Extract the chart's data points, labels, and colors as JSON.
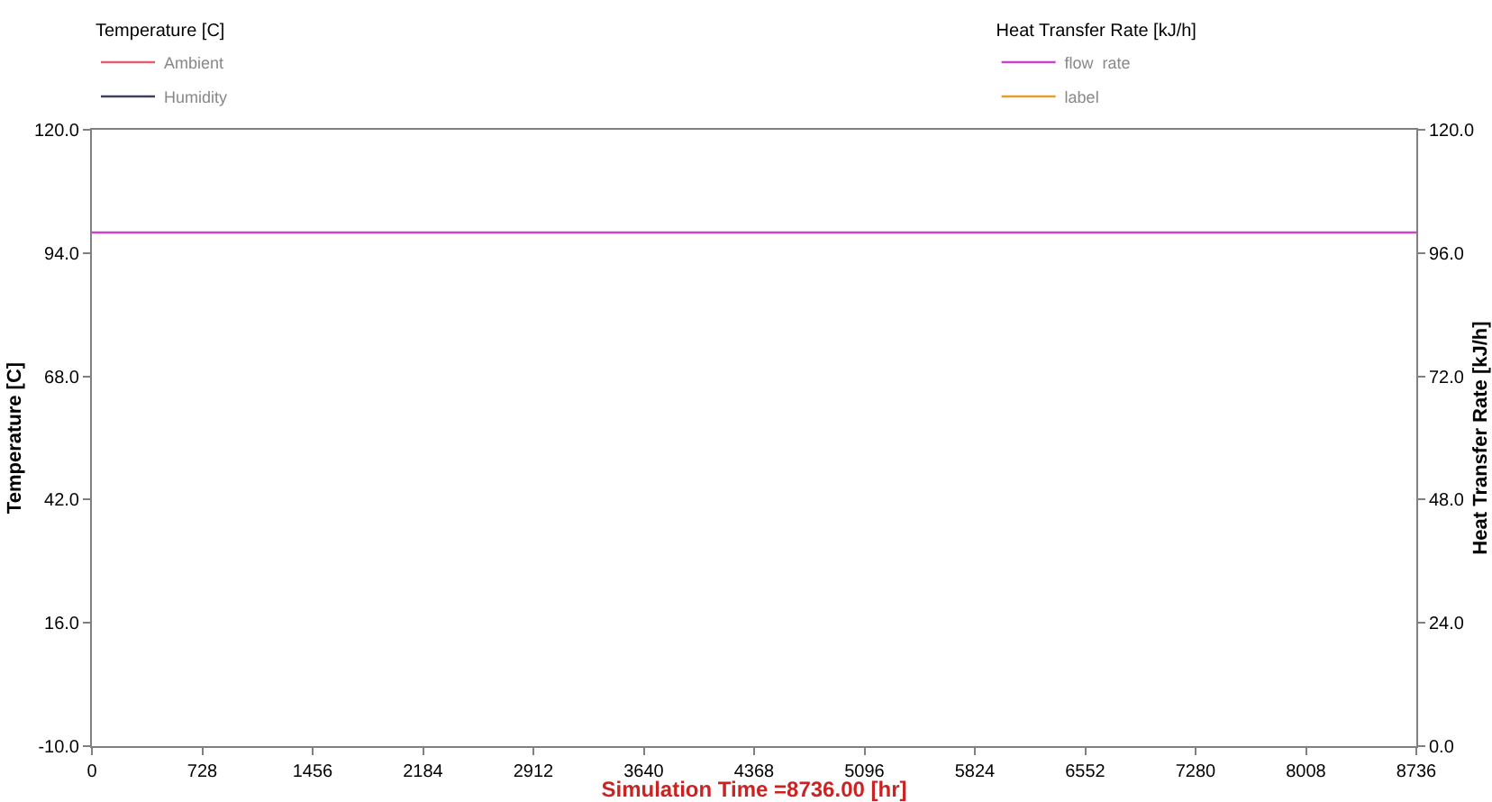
{
  "chart_data": {
    "type": "line",
    "xlabel": "Simulation Time =8736.00 [hr]",
    "ylabel": "Temperature [C]",
    "y2label": "Heat Transfer Rate [kJ/h]",
    "legend_title": [
      "Temperature [C]",
      "Heat Transfer Rate [kJ/h]"
    ],
    "x": [
      0,
      8736
    ],
    "series": [
      {
        "name": "Ambient",
        "color": "#e06070",
        "values": [
          null,
          null
        ]
      },
      {
        "name": "Humidity",
        "color": "#404060",
        "values": [
          null,
          null
        ]
      },
      {
        "name": "flow  rate",
        "color": "#cc44cc",
        "values": [
          100,
          100
        ],
        "axis": "y2"
      },
      {
        "name": "label",
        "color": "#e0a030",
        "values": [
          null,
          null
        ],
        "axis": "y2"
      }
    ],
    "xlim": [
      0,
      8736
    ],
    "xticks": [
      0,
      728,
      1456,
      2184,
      2912,
      3640,
      4368,
      5096,
      5824,
      6552,
      7280,
      8008,
      8736
    ],
    "ylim": [
      -10,
      120
    ],
    "yticks": [
      {
        "value": -10,
        "label": "-10.0"
      },
      {
        "value": 16,
        "label": "16.0"
      },
      {
        "value": 42,
        "label": "42.0"
      },
      {
        "value": 68,
        "label": "68.0"
      },
      {
        "value": 94,
        "label": "94.0"
      },
      {
        "value": 120,
        "label": "120.0"
      }
    ],
    "y2lim": [
      0,
      120
    ],
    "y2ticks": [
      {
        "value": 0,
        "label": "0.0"
      },
      {
        "value": 24,
        "label": "24.0"
      },
      {
        "value": 48,
        "label": "48.0"
      },
      {
        "value": 72,
        "label": "72.0"
      },
      {
        "value": 96,
        "label": "96.0"
      },
      {
        "value": 120,
        "label": "120.0"
      }
    ],
    "legend": "top",
    "marker": "none",
    "line_style": "solid"
  }
}
